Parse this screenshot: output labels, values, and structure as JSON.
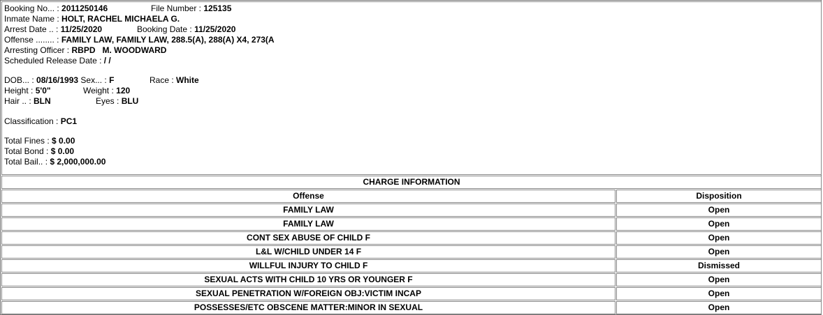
{
  "inmate": {
    "booking_no_label": "Booking No... : ",
    "booking_no": "2011250146",
    "file_number_label": "File Number : ",
    "file_number": "125135",
    "name_label": "Inmate Name : ",
    "name": "HOLT, RACHEL MICHAELA G.",
    "arrest_date_label": "Arrest Date .. : ",
    "arrest_date": "11/25/2020",
    "booking_date_label": "Booking Date : ",
    "booking_date": "11/25/2020",
    "offense_label": "Offense ........ : ",
    "offense": "FAMILY LAW, FAMILY LAW, 288.5(A), 288(A) X4, 273(A",
    "officer_label": "Arresting Officer : ",
    "officer": "RBPD   M. WOODWARD",
    "release_label": "Scheduled Release Date : ",
    "release": "/ /",
    "dob_label": "DOB... : ",
    "dob": "08/16/1993",
    "sex_label": " Sex... : ",
    "sex": "F",
    "race_label": "Race : ",
    "race": "White",
    "height_label": "Height : ",
    "height": "5'0\"",
    "weight_label": "Weight : ",
    "weight": "120",
    "hair_label": "Hair .. : ",
    "hair": "BLN",
    "eyes_label": "Eyes : ",
    "eyes": "BLU",
    "classification_label": "Classification : ",
    "classification": "PC1",
    "fines_label": "Total Fines : ",
    "fines": "$ 0.00",
    "bond_label": "Total Bond : ",
    "bond": "$ 0.00",
    "bail_label": "Total Bail.. : ",
    "bail": "$ 2,000,000.00"
  },
  "charges": {
    "title": "CHARGE INFORMATION",
    "headers": [
      "Offense",
      "Disposition"
    ],
    "rows": [
      [
        "FAMILY LAW",
        "Open"
      ],
      [
        "FAMILY LAW",
        "Open"
      ],
      [
        "CONT SEX ABUSE OF CHILD F",
        "Open"
      ],
      [
        "L&L W/CHILD UNDER 14 F",
        "Open"
      ],
      [
        "WILLFUL INJURY TO CHILD F",
        "Dismissed"
      ],
      [
        "SEXUAL ACTS WITH CHILD 10 YRS OR YOUNGER F",
        "Open"
      ],
      [
        "SEXUAL PENETRATION W/FOREIGN OBJ:VICTIM INCAP",
        "Open"
      ],
      [
        "POSSESSES/ETC OBSCENE MATTER:MINOR IN SEXUAL",
        "Open"
      ]
    ]
  }
}
